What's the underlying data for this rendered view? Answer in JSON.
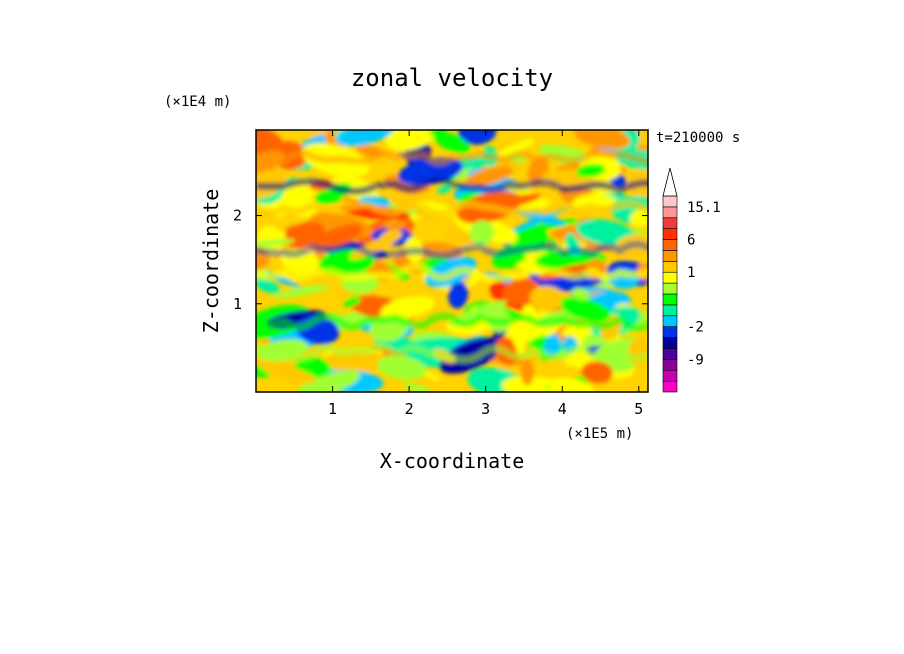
{
  "chart_data": {
    "type": "heatmap",
    "title": "zonal velocity",
    "xlabel": "X-coordinate",
    "ylabel": "Z-coordinate",
    "x_unit_label": "(×1E5 m)",
    "y_unit_label": "(×1E4 m)",
    "time_label": "t=210000 s",
    "x_range": [
      0,
      5.12
    ],
    "y_range": [
      0,
      2.97
    ],
    "x_ticks": [
      {
        "value": 1,
        "label": "1"
      },
      {
        "value": 2,
        "label": "2"
      },
      {
        "value": 3,
        "label": "3"
      },
      {
        "value": 4,
        "label": "4"
      },
      {
        "value": 5,
        "label": "5"
      }
    ],
    "y_ticks": [
      {
        "value": 1,
        "label": "1"
      },
      {
        "value": 2,
        "label": "2"
      }
    ],
    "colorbar": {
      "levels": [
        {
          "color": "#ff00c8",
          "label": ""
        },
        {
          "color": "#c800b4",
          "label": ""
        },
        {
          "color": "#8c0096",
          "label": "-9"
        },
        {
          "color": "#4b00a0",
          "label": ""
        },
        {
          "color": "#0000a0",
          "label": ""
        },
        {
          "color": "#0032e6",
          "label": "-2"
        },
        {
          "color": "#00c8ff",
          "label": ""
        },
        {
          "color": "#00f0a0",
          "label": ""
        },
        {
          "color": "#00ff00",
          "label": ""
        },
        {
          "color": "#a0ff32",
          "label": ""
        },
        {
          "color": "#ffff00",
          "label": "1"
        },
        {
          "color": "#ffc800",
          "label": ""
        },
        {
          "color": "#ff9600",
          "label": ""
        },
        {
          "color": "#ff6400",
          "label": "6"
        },
        {
          "color": "#ff3200",
          "label": ""
        },
        {
          "color": "#f03c3c",
          "label": ""
        },
        {
          "color": "#ff9696",
          "label": "15.1"
        },
        {
          "color": "#ffc8c8",
          "label": ""
        }
      ],
      "extend_top": true
    }
  }
}
